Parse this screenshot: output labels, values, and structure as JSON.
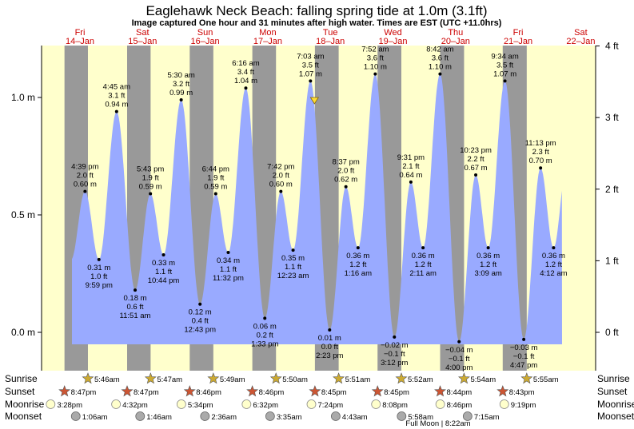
{
  "title": "Eaglehawk Neck Beach: falling  spring tide at 1.0m (3.1ft)",
  "subtitle": "Image captured One hour and 31 minutes after high water. Times are EST (UTC +11.0hrs)",
  "colors": {
    "day_bg": "#ffffcc",
    "night_bg": "#999999",
    "tide_fill": "#99aaff",
    "day_label": "#cc0000",
    "sun_star": "#ccaa33",
    "sunset_star": "#cc5533",
    "moonrise": "#ffffcc",
    "moonset": "#aaaaaa"
  },
  "days": [
    {
      "dow": "Fri",
      "date": "14–Jan"
    },
    {
      "dow": "Sat",
      "date": "15–Jan"
    },
    {
      "dow": "Sun",
      "date": "16–Jan"
    },
    {
      "dow": "Mon",
      "date": "17–Jan"
    },
    {
      "dow": "Tue",
      "date": "18–Jan"
    },
    {
      "dow": "Wed",
      "date": "19–Jan"
    },
    {
      "dow": "Thu",
      "date": "20–Jan"
    },
    {
      "dow": "Fri",
      "date": "21–Jan"
    },
    {
      "dow": "Sat",
      "date": "22–Jan"
    }
  ],
  "row_labels": {
    "sunrise": "Sunrise",
    "sunset": "Sunset",
    "moonrise": "Moonrise",
    "moonset": "Moonset"
  },
  "sunrise": [
    "5:46am",
    "5:47am",
    "5:49am",
    "5:50am",
    "5:51am",
    "5:52am",
    "5:54am",
    "5:55am"
  ],
  "sunset": [
    "8:47pm",
    "8:47pm",
    "8:46pm",
    "8:46pm",
    "8:45pm",
    "8:45pm",
    "8:44pm",
    "8:43pm"
  ],
  "moonrise": [
    "3:28pm",
    "4:32pm",
    "5:34pm",
    "6:32pm",
    "7:24pm",
    "8:08pm",
    "8:46pm",
    "9:19pm"
  ],
  "moonset": [
    "1:06am",
    "1:46am",
    "2:36am",
    "3:35am",
    "4:43am",
    "5:58am",
    "7:15am"
  ],
  "full_moon_note": "Full Moon | 8:22am",
  "chart_data": {
    "type": "area",
    "y_left_unit": "m",
    "y_right_unit": "ft",
    "y_left_ticks": [
      {
        "value": 0.0,
        "label": "0.0 m"
      },
      {
        "value": 0.5,
        "label": "0.5 m"
      },
      {
        "value": 1.0,
        "label": "1.0 m"
      }
    ],
    "y_right_ticks": [
      {
        "value": 0,
        "label": "0 ft"
      },
      {
        "value": 1,
        "label": "1 ft"
      },
      {
        "value": 2,
        "label": "2 ft"
      },
      {
        "value": 3,
        "label": "3 ft"
      },
      {
        "value": 4,
        "label": "4 ft"
      }
    ],
    "x_start": "14-Jan 12:00",
    "tides": [
      {
        "t": 16.65,
        "type": "high",
        "time": "4:39 pm",
        "ft": "2.0 ft",
        "m": "0.60 m",
        "h": 0.6
      },
      {
        "t": 21.98,
        "type": "low",
        "time": "9:59 pm",
        "ft": "1.0 ft",
        "m": "0.31 m",
        "h": 0.31
      },
      {
        "t": 28.75,
        "type": "high",
        "time": "4:45 am",
        "ft": "3.1 ft",
        "m": "0.94 m",
        "h": 0.94
      },
      {
        "t": 35.85,
        "type": "low",
        "time": "11:51 am",
        "ft": "0.6 ft",
        "m": "0.18 m",
        "h": 0.18
      },
      {
        "t": 41.72,
        "type": "high",
        "time": "5:43 pm",
        "ft": "1.9 ft",
        "m": "0.59 m",
        "h": 0.59
      },
      {
        "t": 46.73,
        "type": "low",
        "time": "10:44 pm",
        "ft": "1.1 ft",
        "m": "0.33 m",
        "h": 0.33
      },
      {
        "t": 53.5,
        "type": "high",
        "time": "5:30 am",
        "ft": "3.2 ft",
        "m": "0.99 m",
        "h": 0.99
      },
      {
        "t": 60.72,
        "type": "low",
        "time": "12:43 pm",
        "ft": "0.4 ft",
        "m": "0.12 m",
        "h": 0.12
      },
      {
        "t": 66.73,
        "type": "high",
        "time": "6:44 pm",
        "ft": "1.9 ft",
        "m": "0.59 m",
        "h": 0.59
      },
      {
        "t": 71.53,
        "type": "low",
        "time": "11:32 pm",
        "ft": "1.1 ft",
        "m": "0.34 m",
        "h": 0.34
      },
      {
        "t": 78.27,
        "type": "high",
        "time": "6:16 am",
        "ft": "3.4 ft",
        "m": "1.04 m",
        "h": 1.04
      },
      {
        "t": 85.55,
        "type": "low",
        "time": "1:33 pm",
        "ft": "0.2 ft",
        "m": "0.06 m",
        "h": 0.06
      },
      {
        "t": 91.7,
        "type": "high",
        "time": "7:42 pm",
        "ft": "2.0 ft",
        "m": "0.60 m",
        "h": 0.6
      },
      {
        "t": 96.38,
        "type": "low",
        "time": "12:23 am",
        "ft": "1.1 ft",
        "m": "0.35 m",
        "h": 0.35
      },
      {
        "t": 103.05,
        "type": "high",
        "time": "7:03 am",
        "ft": "3.5 ft",
        "m": "1.07 m",
        "h": 1.07
      },
      {
        "t": 110.38,
        "type": "low",
        "time": "2:23 pm",
        "ft": "0.0 ft",
        "m": "0.01 m",
        "h": 0.01
      },
      {
        "t": 116.62,
        "type": "high",
        "time": "8:37 pm",
        "ft": "2.0 ft",
        "m": "0.62 m",
        "h": 0.62
      },
      {
        "t": 121.27,
        "type": "low",
        "time": "1:16 am",
        "ft": "1.2 ft",
        "m": "0.36 m",
        "h": 0.36
      },
      {
        "t": 127.87,
        "type": "high",
        "time": "7:52 am",
        "ft": "3.6 ft",
        "m": "1.10 m",
        "h": 1.1
      },
      {
        "t": 135.2,
        "type": "low",
        "time": "3:12 pm",
        "ft": "−0.1 ft",
        "m": "−0.02 m",
        "h": -0.02
      },
      {
        "t": 141.52,
        "type": "high",
        "time": "9:31 pm",
        "ft": "2.1 ft",
        "m": "0.64 m",
        "h": 0.64
      },
      {
        "t": 146.18,
        "type": "low",
        "time": "2:11 am",
        "ft": "1.2 ft",
        "m": "0.36 m",
        "h": 0.36
      },
      {
        "t": 152.7,
        "type": "high",
        "time": "8:42 am",
        "ft": "3.6 ft",
        "m": "1.10 m",
        "h": 1.1
      },
      {
        "t": 160.0,
        "type": "low",
        "time": "4:00 pm",
        "ft": "−0.1 ft",
        "m": "−0.04 m",
        "h": -0.04
      },
      {
        "t": 166.38,
        "type": "high",
        "time": "10:23 pm",
        "ft": "2.2 ft",
        "m": "0.67 m",
        "h": 0.67
      },
      {
        "t": 171.15,
        "type": "low",
        "time": "3:09 am",
        "ft": "1.2 ft",
        "m": "0.36 m",
        "h": 0.36
      },
      {
        "t": 177.57,
        "type": "high",
        "time": "9:34 am",
        "ft": "3.5 ft",
        "m": "1.07 m",
        "h": 1.07
      },
      {
        "t": 184.78,
        "type": "low",
        "time": "4:47 pm",
        "ft": "−0.1 ft",
        "m": "−0.03 m",
        "h": -0.03
      },
      {
        "t": 191.22,
        "type": "high",
        "time": "11:13 pm",
        "ft": "2.3 ft",
        "m": "0.70 m",
        "h": 0.7
      },
      {
        "t": 196.2,
        "type": "low",
        "time": "4:12 am",
        "ft": "1.2 ft",
        "m": "0.36 m",
        "h": 0.36
      }
    ],
    "current": {
      "t": 104.57,
      "h": 1.0,
      "state": "falling"
    }
  }
}
